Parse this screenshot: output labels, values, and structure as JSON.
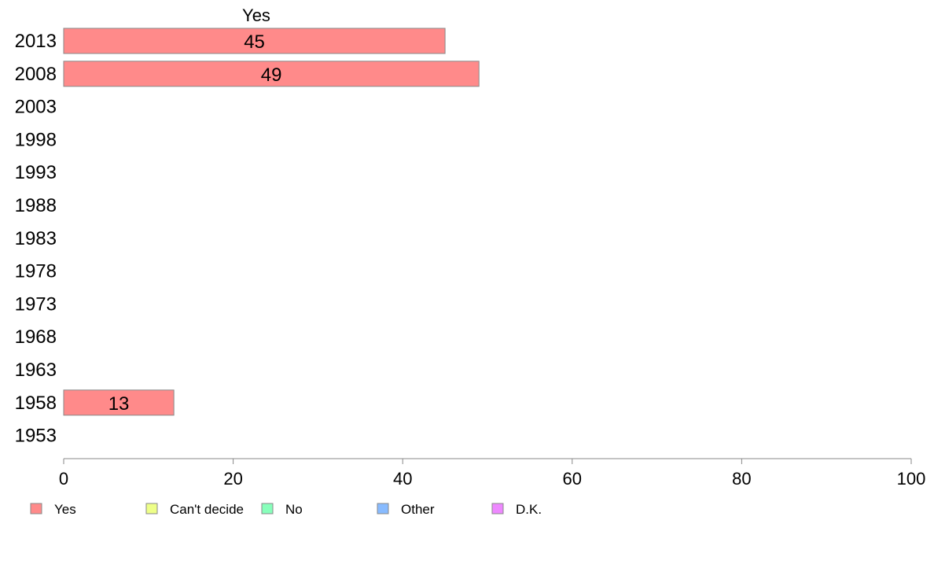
{
  "chart_data": {
    "type": "bar",
    "orientation": "horizontal",
    "stacked": true,
    "title": "",
    "panel_label": "Yes",
    "xlabel": "",
    "ylabel": "",
    "xlim": [
      0,
      100
    ],
    "xticks": [
      0,
      20,
      40,
      60,
      80,
      100
    ],
    "categories": [
      "2013",
      "2008",
      "2003",
      "1998",
      "1993",
      "1988",
      "1983",
      "1978",
      "1973",
      "1968",
      "1963",
      "1958",
      "1953"
    ],
    "series": [
      {
        "name": "Yes",
        "color": "#ff8a8a",
        "values": [
          45,
          49,
          null,
          null,
          null,
          null,
          null,
          null,
          null,
          null,
          null,
          13,
          null
        ]
      },
      {
        "name": "Can't decide",
        "color": "#eeff88",
        "values": [
          null,
          null,
          null,
          null,
          null,
          null,
          null,
          null,
          null,
          null,
          null,
          null,
          null
        ]
      },
      {
        "name": "No",
        "color": "#88ffbb",
        "values": [
          null,
          null,
          null,
          null,
          null,
          null,
          null,
          null,
          null,
          null,
          null,
          null,
          null
        ]
      },
      {
        "name": "Other",
        "color": "#88bbff",
        "values": [
          null,
          null,
          null,
          null,
          null,
          null,
          null,
          null,
          null,
          null,
          null,
          null,
          null
        ]
      },
      {
        "name": "D.K.",
        "color": "#ee88ff",
        "values": [
          null,
          null,
          null,
          null,
          null,
          null,
          null,
          null,
          null,
          null,
          null,
          null,
          null
        ]
      }
    ],
    "data_labels": true,
    "grid": false,
    "legend_position": "bottom-left"
  }
}
